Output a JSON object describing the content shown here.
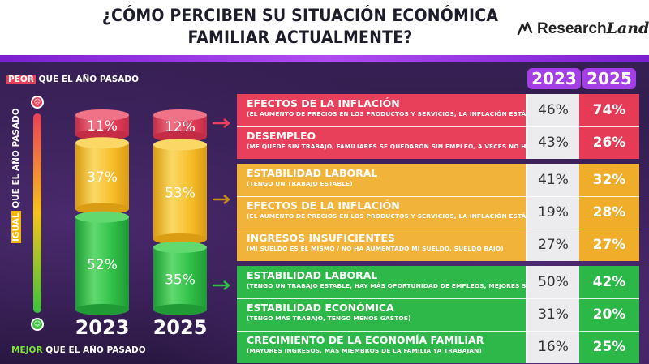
{
  "header": {
    "title_line1": "¿CÓMO PERCIBEN SU SITUACIÓN ECONÓMICA",
    "title_line2": "FAMILIAR ACTUALMENTE?",
    "logo_main": "Research",
    "logo_script": "Land"
  },
  "legend": {
    "top_tag": "PEOR",
    "top_text": " QUE EL AÑO PASADO",
    "mid_tag": "IGUAL",
    "mid_text": " QUE EL AÑO PASADO",
    "bottom_tag": "MEJOR",
    "bottom_text": " QUE EL AÑO PASADO"
  },
  "colors": {
    "red": "#e8405a",
    "yellow": "#f6bd2b",
    "green": "#2fbf47",
    "purple": "#a43ee6"
  },
  "chart_data": [
    {
      "type": "bar",
      "stacked": true,
      "categories": [
        "2023",
        "2025"
      ],
      "series": [
        {
          "name": "PEOR",
          "values": [
            11,
            12
          ]
        },
        {
          "name": "IGUAL",
          "values": [
            37,
            53
          ]
        },
        {
          "name": "MEJOR",
          "values": [
            52,
            35
          ]
        }
      ]
    },
    {
      "type": "table",
      "columns": [
        "2023",
        "2025"
      ],
      "rows": [
        {
          "group": "PEOR",
          "title": "EFECTOS DE LA INFLACIÓN",
          "subtitle": "(EL AUMENTO DE PRECIOS EN LOS PRODUCTOS Y SERVICIOS, LA INFLACIÓN ESTÁ MUY ALTA)",
          "v2023": "46%",
          "v2025": "74%"
        },
        {
          "group": "PEOR",
          "title": "DESEMPLEO",
          "subtitle": "(ME QUEDÉ SIN TRABAJO, FAMILIARES SE QUEDARON SIN EMPLEO, A VECES NO HAY TRABAJO)",
          "v2023": "43%",
          "v2025": "26%"
        },
        {
          "group": "IGUAL",
          "title": "ESTABILIDAD LABORAL",
          "subtitle": "(TENGO UN TRABAJO ESTABLE)",
          "v2023": "41%",
          "v2025": "32%"
        },
        {
          "group": "IGUAL",
          "title": "EFECTOS DE LA INFLACIÓN",
          "subtitle": "(EL AUMENTO DE PRECIOS EN LOS PRODUCTOS Y SERVICIOS, LA INFLACIÓN ESTÁ MUY ALTA)",
          "v2023": "19%",
          "v2025": "28%"
        },
        {
          "group": "IGUAL",
          "title": "INGRESOS INSUFICIENTES",
          "subtitle": "(MI SUELDO ES EL MISMO / NO HA AUMENTADO MI SUELDO, SUELDO BAJO)",
          "v2023": "27%",
          "v2025": "27%"
        },
        {
          "group": "MEJOR",
          "title": "ESTABILIDAD LABORAL",
          "subtitle": "(TENGO UN TRABAJO ESTABLE, HAY MÁS OPORTUNIDAD DE EMPLEOS, MEJORES SUELDOS)",
          "v2023": "50%",
          "v2025": "42%"
        },
        {
          "group": "MEJOR",
          "title": "ESTABILIDAD ECONÓMICA",
          "subtitle": "(TENGO MÁS TRABAJO, TENGO MENOS GASTOS)",
          "v2023": "31%",
          "v2025": "20%"
        },
        {
          "group": "MEJOR",
          "title": "CRECIMIENTO DE LA ECONOMÍA FAMILIAR",
          "subtitle": "(MAYORES INGRESOS, MÁS MIEMBROS DE LA FAMILIA YA TRABAJAN)",
          "v2023": "16%",
          "v2025": "25%"
        }
      ]
    }
  ]
}
